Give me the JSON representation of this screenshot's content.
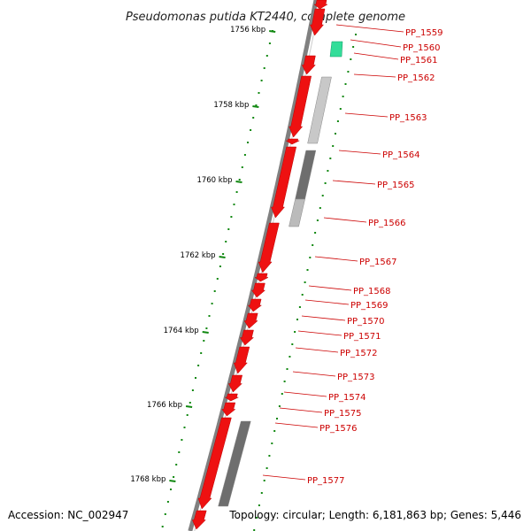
{
  "title": "Pseudomonas putida KT2440, complete genome",
  "accession_text": "Accession: NC_002947",
  "topology_text": "Topology: circular; Length: 6,181,863 bp; Genes: 5,446",
  "colors": {
    "gene": "#ee1111",
    "axis": "#808080",
    "tick": "#118811",
    "label": "#cc0000",
    "leader": "#cc0000",
    "other_feature": "#33dd99"
  },
  "scale_ticks": [
    {
      "label": "1756 kbp"
    },
    {
      "label": "1758 kbp"
    },
    {
      "label": "1760 kbp"
    },
    {
      "label": "1762 kbp"
    },
    {
      "label": "1764 kbp"
    },
    {
      "label": "1766 kbp"
    },
    {
      "label": "1768 kbp"
    }
  ],
  "genes": [
    {
      "id": "PP_1559"
    },
    {
      "id": "PP_1560"
    },
    {
      "id": "PP_1561"
    },
    {
      "id": "PP_1562"
    },
    {
      "id": "PP_1563"
    },
    {
      "id": "PP_1564"
    },
    {
      "id": "PP_1565"
    },
    {
      "id": "PP_1566"
    },
    {
      "id": "PP_1567"
    },
    {
      "id": "PP_1568"
    },
    {
      "id": "PP_1569"
    },
    {
      "id": "PP_1570"
    },
    {
      "id": "PP_1571"
    },
    {
      "id": "PP_1572"
    },
    {
      "id": "PP_1573"
    },
    {
      "id": "PP_1574"
    },
    {
      "id": "PP_1575"
    },
    {
      "id": "PP_1576"
    },
    {
      "id": "PP_1577"
    }
  ]
}
